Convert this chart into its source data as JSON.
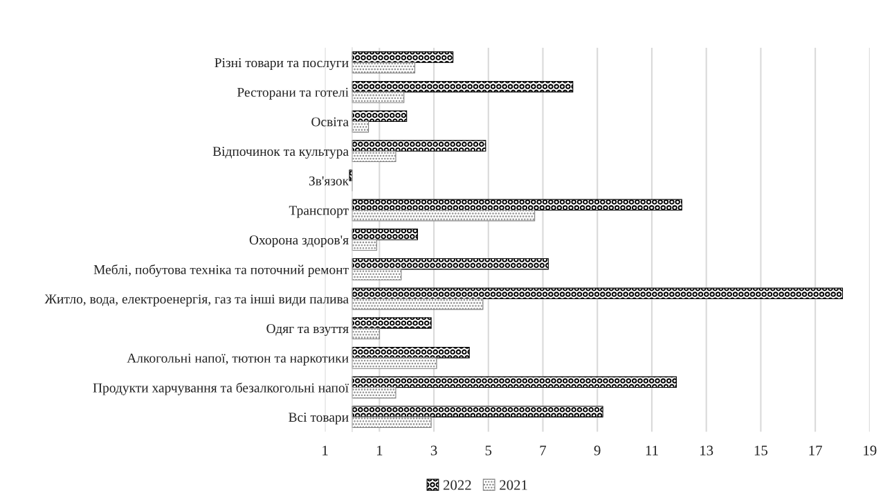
{
  "chart_data": {
    "type": "bar",
    "orientation": "horizontal",
    "categories": [
      "Різні товари та послуги",
      "Ресторани та готелі",
      "Освіта",
      "Відпочинок та культура",
      "Зв'язок",
      "Транспорт",
      "Охорона здоров'я",
      "Меблі, побутова техніка та поточний ремонт",
      "Житло, вода, електроенергія, газ та інші види палива",
      "Одяг та взуття",
      "Алкогольні напої, тютюн та наркотики",
      "Продукти харчування та безалкогольні напої",
      "Всі товари"
    ],
    "series": [
      {
        "name": "2022",
        "color": "#000000",
        "values": [
          3.7,
          8.1,
          2.0,
          4.9,
          -0.1,
          12.1,
          2.4,
          7.2,
          18.0,
          2.9,
          4.3,
          11.9,
          9.2
        ]
      },
      {
        "name": "2021",
        "color": "#808080",
        "values": [
          2.3,
          1.9,
          0.6,
          1.6,
          0.0,
          6.7,
          0.9,
          1.8,
          4.8,
          1.0,
          3.1,
          1.6,
          2.9
        ]
      }
    ],
    "xlim": [
      -1,
      19
    ],
    "xticks": [
      {
        "value": -1,
        "label": "1"
      },
      1,
      3,
      5,
      7,
      9,
      11,
      13,
      15,
      17,
      19
    ],
    "grid": "x",
    "legend": "bottom"
  }
}
